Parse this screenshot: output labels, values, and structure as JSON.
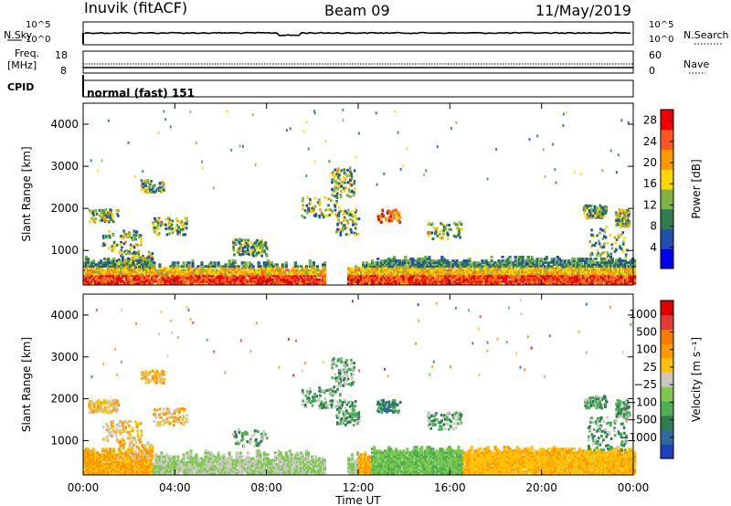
{
  "header": {
    "station": "Inuvik (fitACF)",
    "beam": "Beam 09",
    "date": "11/May/2019"
  },
  "status_panels": {
    "nsky_label": "N.Sky",
    "nsearch_label": "N.Search",
    "nsky_ticks": [
      "10^5",
      "10^0"
    ],
    "nsearch_ticks": [
      "10^5",
      "10^0"
    ],
    "freq_label_1": "Freq.",
    "freq_label_2": "[MHz]",
    "freq_ticks": [
      "18",
      "8"
    ],
    "nave_label": "Nave",
    "nave_ticks": [
      "60",
      "0"
    ],
    "cpid_label": "CPID",
    "cpid_value": "normal (fast) 151"
  },
  "chart_data": [
    {
      "type": "heatmap",
      "name": "power",
      "ylabel": "Slant Range [km]",
      "xlabel": "",
      "x_ticks": [
        "00:00",
        "04:00",
        "08:00",
        "12:00",
        "16:00",
        "20:00",
        "00:00"
      ],
      "x_range_hours": [
        0,
        24
      ],
      "y_ticks": [
        1000,
        2000,
        3000,
        4000
      ],
      "ylim": [
        180,
        4500
      ],
      "colorbar": {
        "label": "Power [dB]",
        "ticks": [
          4,
          8,
          12,
          16,
          20,
          24,
          28
        ],
        "range": [
          0,
          30
        ],
        "colors": [
          "#0000ee",
          "#1f4fa8",
          "#2e7d4f",
          "#7cb342",
          "#ffd600",
          "#ff9800",
          "#ff5722",
          "#ee0000"
        ]
      }
    },
    {
      "type": "heatmap",
      "name": "velocity",
      "ylabel": "Slant Range [km]",
      "xlabel": "Time UT",
      "x_ticks": [
        "00:00",
        "04:00",
        "08:00",
        "12:00",
        "16:00",
        "20:00",
        "00:00"
      ],
      "x_range_hours": [
        0,
        24
      ],
      "y_ticks": [
        1000,
        2000,
        3000,
        4000
      ],
      "ylim": [
        180,
        4500
      ],
      "colorbar": {
        "label": "Velocity [m s⁻¹]",
        "ticks": [
          "1000",
          "500",
          "100",
          "25",
          "−25",
          "−100",
          "−500",
          "−1000"
        ],
        "colors": [
          "#1e3fbf",
          "#2e6b9c",
          "#2e7d4f",
          "#4caf50",
          "#7ec850",
          "#c8c8c0",
          "#ffc107",
          "#ff9800",
          "#f57c00",
          "#e53935",
          "#e00000"
        ]
      }
    }
  ]
}
